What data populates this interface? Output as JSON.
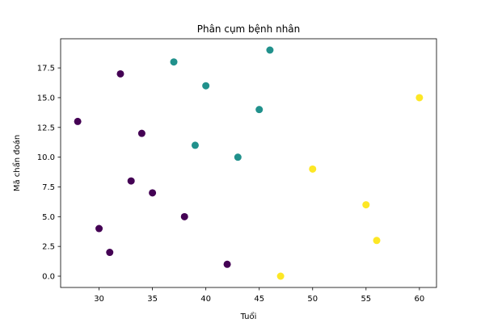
{
  "chart_data": {
    "type": "scatter",
    "title": "Phân cụm bệnh nhân",
    "xlabel": "Tuổi",
    "ylabel": "Mã chẩn đoán",
    "xlim": [
      26.4,
      61.6
    ],
    "ylim": [
      -0.95,
      19.95
    ],
    "x_ticks": [
      30,
      35,
      40,
      45,
      50,
      55,
      60
    ],
    "x_tick_labels": [
      "30",
      "35",
      "40",
      "45",
      "50",
      "55",
      "60"
    ],
    "y_ticks": [
      0,
      2.5,
      5,
      7.5,
      10,
      12.5,
      15,
      17.5
    ],
    "y_tick_labels": [
      "0.0",
      "2.5",
      "5.0",
      "7.5",
      "10.0",
      "12.5",
      "15.0",
      "17.5"
    ],
    "grid": false,
    "legend": "none",
    "colors": {
      "cluster_0": "#440154",
      "cluster_1": "#21918c",
      "cluster_2": "#fde725",
      "axes": "#000000",
      "background": "#ffffff"
    },
    "points": [
      {
        "x": 28,
        "y": 13,
        "cluster": 0
      },
      {
        "x": 30,
        "y": 4,
        "cluster": 0
      },
      {
        "x": 31,
        "y": 2,
        "cluster": 0
      },
      {
        "x": 32,
        "y": 17,
        "cluster": 0
      },
      {
        "x": 33,
        "y": 8,
        "cluster": 0
      },
      {
        "x": 34,
        "y": 12,
        "cluster": 0
      },
      {
        "x": 35,
        "y": 7,
        "cluster": 0
      },
      {
        "x": 38,
        "y": 5,
        "cluster": 0
      },
      {
        "x": 42,
        "y": 1,
        "cluster": 0
      },
      {
        "x": 37,
        "y": 18,
        "cluster": 1
      },
      {
        "x": 39,
        "y": 11,
        "cluster": 1
      },
      {
        "x": 40,
        "y": 16,
        "cluster": 1
      },
      {
        "x": 43,
        "y": 10,
        "cluster": 1
      },
      {
        "x": 45,
        "y": 14,
        "cluster": 1
      },
      {
        "x": 46,
        "y": 19,
        "cluster": 1
      },
      {
        "x": 47,
        "y": 0,
        "cluster": 2
      },
      {
        "x": 50,
        "y": 9,
        "cluster": 2
      },
      {
        "x": 55,
        "y": 6,
        "cluster": 2
      },
      {
        "x": 56,
        "y": 3,
        "cluster": 2
      },
      {
        "x": 60,
        "y": 15,
        "cluster": 2
      }
    ]
  }
}
